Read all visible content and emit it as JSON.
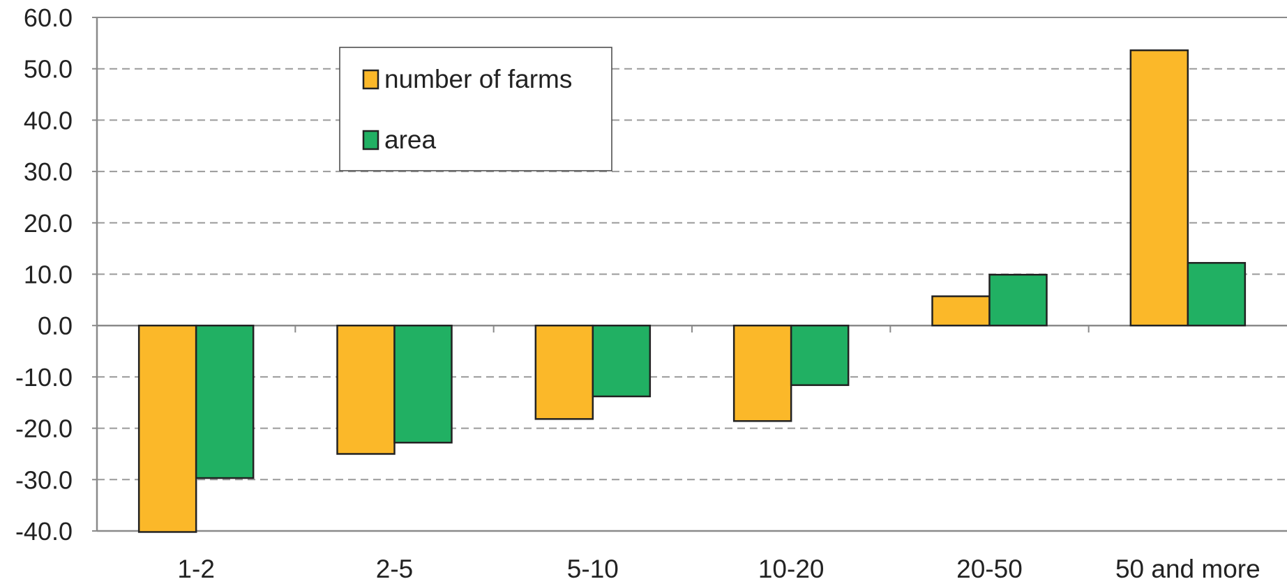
{
  "chart_data": {
    "type": "bar",
    "categories": [
      "1-2",
      "2-5",
      "5-10",
      "10-20",
      "20-50",
      "50 and more"
    ],
    "series": [
      {
        "name": "number of farms",
        "color": "#FBB829",
        "values": [
          -40.2,
          -25.0,
          -18.2,
          -18.6,
          5.7,
          53.6
        ]
      },
      {
        "name": "area",
        "color": "#21B063",
        "values": [
          -29.7,
          -22.8,
          -13.8,
          -11.6,
          9.9,
          12.2
        ]
      }
    ],
    "y_ticks": [
      "60.0",
      "50.0",
      "40.0",
      "30.0",
      "20.0",
      "10.0",
      "0.0",
      "-10.0",
      "-20.0",
      "-30.0",
      "-40.0"
    ],
    "ylim": [
      -40,
      60
    ],
    "grid": "horizontal dashed",
    "legend_position": "top-left",
    "colors": {
      "border": "#222222",
      "grid": "#9a9a9a",
      "axis": "#8a8a8a"
    }
  }
}
